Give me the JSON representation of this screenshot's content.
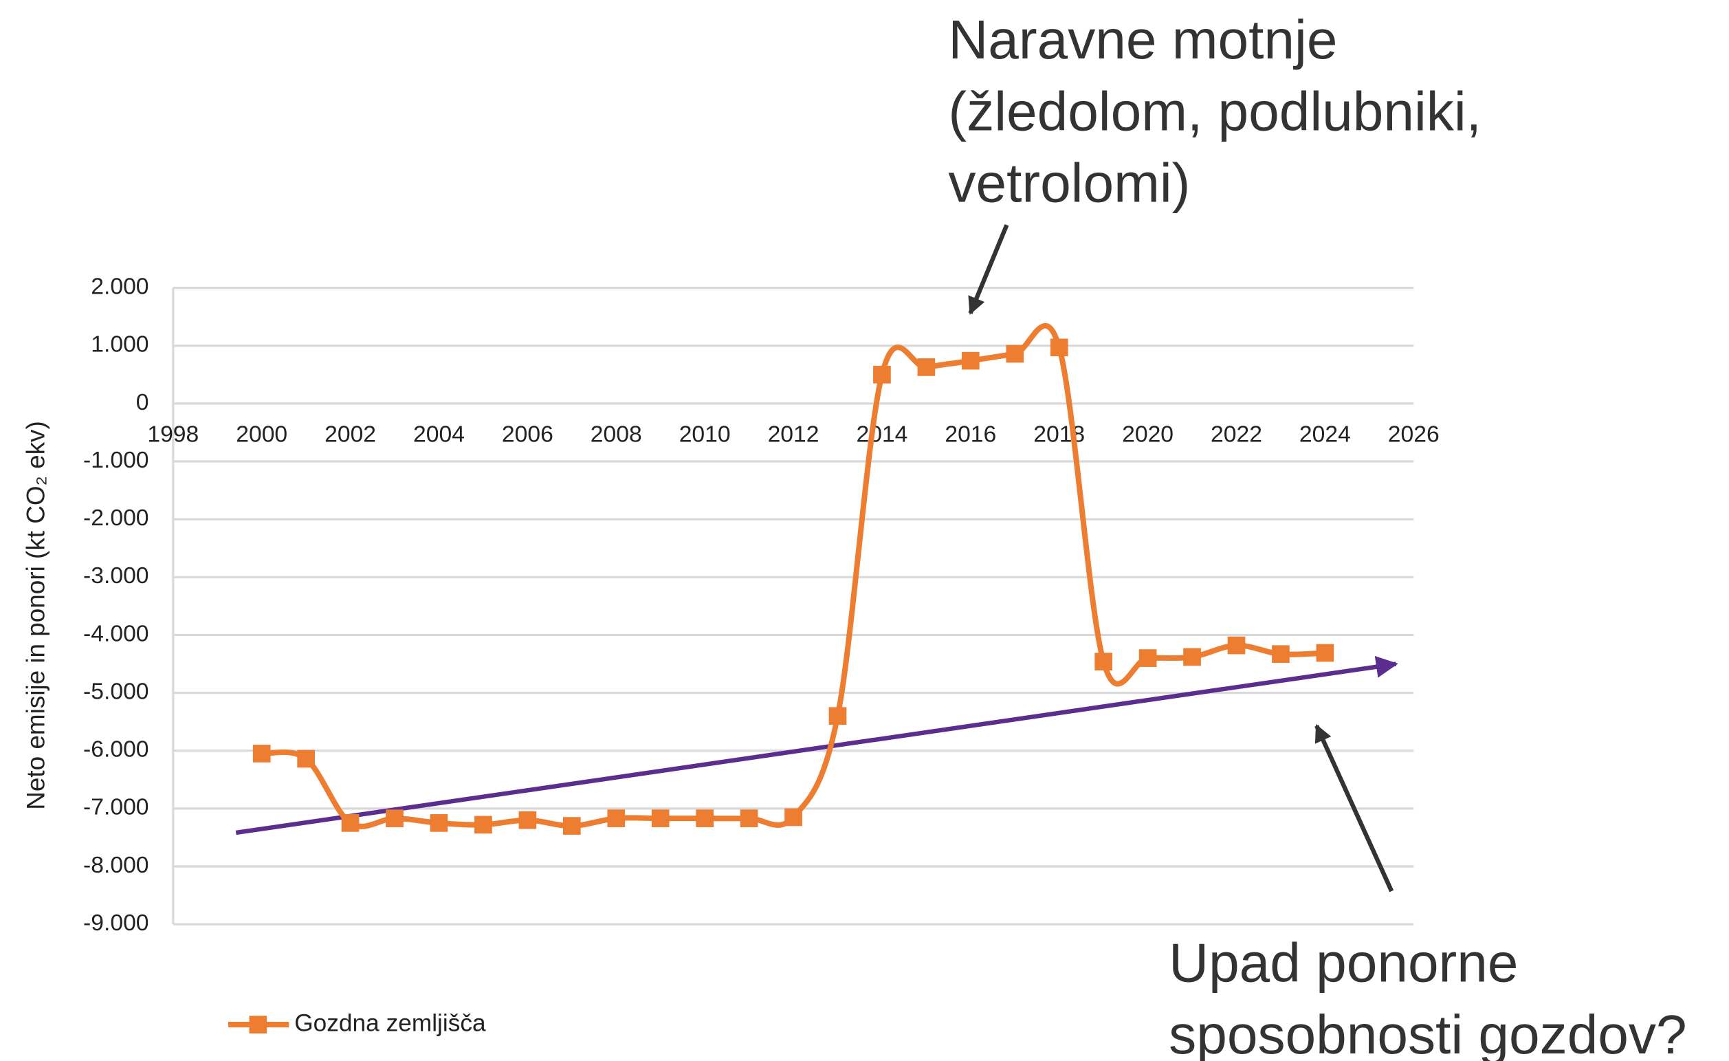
{
  "chart_data": {
    "type": "line",
    "ylabel": "Neto emisije in ponori (kt CO₂ ekv)",
    "annotations": [
      [
        "Naravne motnje",
        "(žledolom, podlubniki,",
        "vetrolomi)"
      ],
      [
        "Upad ponorne",
        "sposobnosti gozdov?"
      ]
    ],
    "x": [
      2000,
      2001,
      2002,
      2003,
      2004,
      2005,
      2006,
      2007,
      2008,
      2009,
      2010,
      2011,
      2012,
      2013,
      2014,
      2015,
      2016,
      2017,
      2018,
      2019,
      2020,
      2021,
      2022,
      2023,
      2024
    ],
    "series": [
      {
        "name": "Gozdna zemljišča",
        "color": "#ed7d31",
        "values": [
          -6050,
          -6140,
          -7250,
          -7170,
          -7250,
          -7280,
          -7200,
          -7300,
          -7170,
          -7170,
          -7170,
          -7170,
          -7150,
          -5400,
          500,
          630,
          740,
          860,
          970,
          -4460,
          -4400,
          -4380,
          -4180,
          -4330,
          -4310
        ]
      }
    ],
    "xlim": [
      1998,
      2026
    ],
    "xticks": [
      1998,
      2000,
      2002,
      2004,
      2006,
      2008,
      2010,
      2012,
      2014,
      2016,
      2018,
      2020,
      2022,
      2024,
      2026
    ],
    "ylim": [
      -9000,
      2000
    ],
    "yticks": [
      {
        "value": 2000,
        "label": "2.000"
      },
      {
        "value": 1000,
        "label": "1.000"
      },
      0,
      {
        "value": -1000,
        "label": "-1.000"
      },
      {
        "value": -2000,
        "label": "-2.000"
      },
      {
        "value": -3000,
        "label": "-3.000"
      },
      {
        "value": -4000,
        "label": "-4.000"
      },
      {
        "value": -5000,
        "label": "-5.000"
      },
      {
        "value": -6000,
        "label": "-6.000"
      },
      {
        "value": -7000,
        "label": "-7.000"
      },
      {
        "value": -8000,
        "label": "-8.000"
      },
      {
        "value": -9000,
        "label": "-9.000"
      }
    ],
    "grid": true
  }
}
